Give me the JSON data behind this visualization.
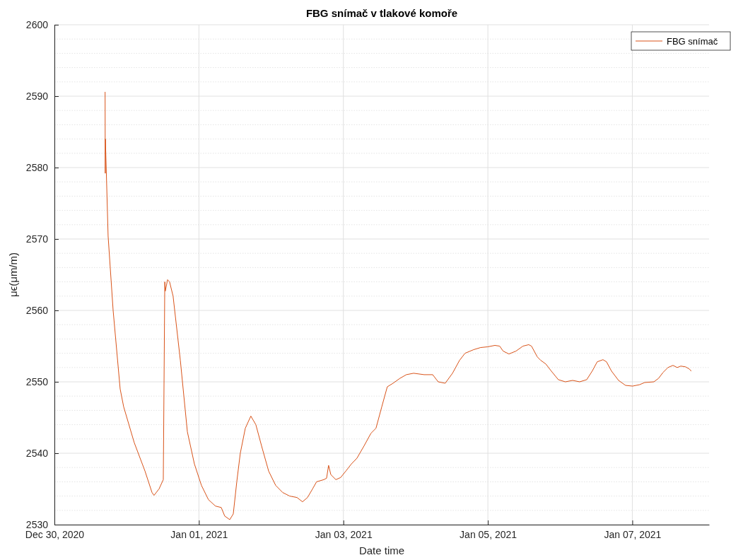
{
  "chart_data": {
    "type": "line",
    "title": "FBG snímač v tlakové komoře",
    "xlabel": "Date time",
    "ylabel": "μϵ(μm/m)",
    "xlim": [
      "2020-12-30",
      "2021-01-08T01:30"
    ],
    "xticks": [
      {
        "value": "2020-12-30",
        "label": "Dec 30, 2020"
      },
      {
        "value": "2021-01-01",
        "label": "Jan 01, 2021"
      },
      {
        "value": "2021-01-03",
        "label": "Jan 03, 2021"
      },
      {
        "value": "2021-01-05",
        "label": "Jan 05, 2021"
      },
      {
        "value": "2021-01-07",
        "label": "Jan 07, 2021"
      }
    ],
    "ylim": [
      2530,
      2600
    ],
    "yticks": [
      2530,
      2540,
      2550,
      2560,
      2570,
      2580,
      2590,
      2600
    ],
    "grid": true,
    "legend": "top right",
    "line_style": "solid",
    "marker": "none",
    "x": [
      "2020-12-30T16:50",
      "2020-12-30T16:53",
      "2020-12-30T16:56",
      "2020-12-30T17:50",
      "2020-12-30T19:30",
      "2020-12-30T21:50",
      "2020-12-30T23:00",
      "2020-12-31T02:30",
      "2020-12-31T06:05",
      "2020-12-31T08:25",
      "2020-12-31T09:05",
      "2020-12-31T10:45",
      "2020-12-31T12:10",
      "2020-12-31T12:40",
      "2020-12-31T12:50",
      "2020-12-31T13:35",
      "2020-12-31T14:15",
      "2020-12-31T15:25",
      "2020-12-31T17:50",
      "2020-12-31T20:10",
      "2020-12-31T22:30",
      "2021-01-01T00:50",
      "2021-01-01T03:10",
      "2021-01-01T05:30",
      "2021-01-01T07:25",
      "2021-01-01T08:35",
      "2021-01-01T10:15",
      "2021-01-01T11:25",
      "2021-01-01T12:35",
      "2021-01-01T13:45",
      "2021-01-01T15:25",
      "2021-01-01T17:15",
      "2021-01-01T18:55",
      "2021-01-01T20:50",
      "2021-01-01T23:10",
      "2021-01-02T01:30",
      "2021-01-02T03:50",
      "2021-01-02T06:10",
      "2021-01-02T08:35",
      "2021-01-02T10:25",
      "2021-01-02T12:05",
      "2021-01-02T13:45",
      "2021-01-02T15:05",
      "2021-01-02T17:30",
      "2021-01-02T18:25",
      "2021-01-02T19:05",
      "2021-01-02T19:50",
      "2021-01-02T21:30",
      "2021-01-02T23:05",
      "2021-01-03T01:00",
      "2021-01-03T02:40",
      "2021-01-03T04:30",
      "2021-01-03T06:50",
      "2021-01-03T09:10",
      "2021-01-03T10:50",
      "2021-01-03T12:45",
      "2021-01-03T14:35",
      "2021-01-03T16:30",
      "2021-01-03T18:50",
      "2021-01-03T20:55",
      "2021-01-03T23:20",
      "2021-01-04T02:50",
      "2021-01-04T05:40",
      "2021-01-04T07:30",
      "2021-01-04T09:50",
      "2021-01-04T12:15",
      "2021-01-04T14:35",
      "2021-01-04T16:25",
      "2021-01-04T19:15",
      "2021-01-04T21:35",
      "2021-01-04T23:55",
      "2021-01-05T02:20",
      "2021-01-05T03:55",
      "2021-01-05T05:05",
      "2021-01-05T07:00",
      "2021-01-05T09:20",
      "2021-01-05T11:40",
      "2021-01-05T13:35",
      "2021-01-05T14:30",
      "2021-01-05T16:25",
      "2021-01-05T17:35",
      "2021-01-05T19:15",
      "2021-01-05T21:05",
      "2021-01-05T23:25",
      "2021-01-06T01:45",
      "2021-01-06T04:10",
      "2021-01-06T06:30",
      "2021-01-06T08:50",
      "2021-01-06T10:40",
      "2021-01-06T12:20",
      "2021-01-06T14:15",
      "2021-01-06T15:25",
      "2021-01-06T17:05",
      "2021-01-06T19:25",
      "2021-01-06T21:45",
      "2021-01-07T00:05",
      "2021-01-07T02:25",
      "2021-01-07T04:05",
      "2021-01-07T07:10",
      "2021-01-07T08:45",
      "2021-01-07T10:10",
      "2021-01-07T11:50",
      "2021-01-07T13:30",
      "2021-01-07T14:55",
      "2021-01-07T16:05",
      "2021-01-07T17:40",
      "2021-01-07T18:55",
      "2021-01-07T19:35"
    ],
    "series": [
      {
        "name": "FBG snímač",
        "color": "#d95319",
        "values": [
          2590.6,
          2579.2,
          2584,
          2570.4,
          2560,
          2549,
          2546.5,
          2541.5,
          2537.5,
          2534.5,
          2534.1,
          2535,
          2536.3,
          2564,
          2562.7,
          2564.3,
          2564,
          2562,
          2553,
          2543,
          2538.5,
          2535.5,
          2533.5,
          2532.6,
          2532.4,
          2531.2,
          2530.7,
          2531.5,
          2536,
          2540,
          2543.5,
          2545.2,
          2544,
          2541,
          2537.5,
          2535.5,
          2534.5,
          2534,
          2533.8,
          2533.2,
          2533.8,
          2535,
          2536,
          2536.3,
          2536.5,
          2538.3,
          2537,
          2536.3,
          2536.6,
          2537.6,
          2538.5,
          2539.3,
          2541,
          2542.8,
          2543.5,
          2546.5,
          2549.3,
          2549.8,
          2550.5,
          2551,
          2551.2,
          2551,
          2551,
          2550,
          2549.8,
          2551.2,
          2553,
          2554,
          2554.5,
          2554.8,
          2554.9,
          2555.1,
          2555,
          2554.3,
          2553.9,
          2554.3,
          2555,
          2555.2,
          2555,
          2553.5,
          2553,
          2552.5,
          2551.5,
          2550.3,
          2550,
          2550.2,
          2550,
          2550.3,
          2551.5,
          2552.8,
          2553.1,
          2552.8,
          2551.5,
          2550.2,
          2549.5,
          2549.4,
          2549.6,
          2549.9,
          2550,
          2550.5,
          2551.3,
          2552,
          2552.3,
          2552,
          2552.2,
          2552.1,
          2551.8,
          2551.5
        ]
      }
    ]
  }
}
